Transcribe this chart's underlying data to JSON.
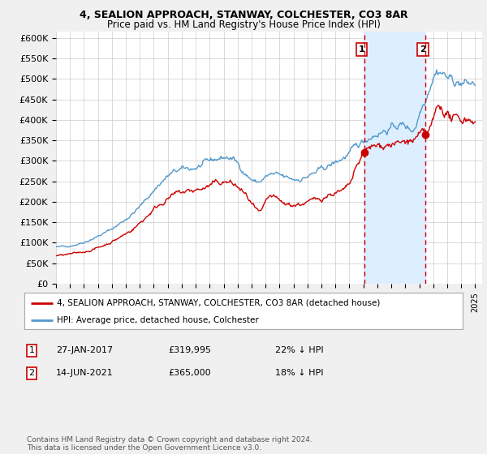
{
  "title": "4, SEALION APPROACH, STANWAY, COLCHESTER, CO3 8AR",
  "subtitle": "Price paid vs. HM Land Registry's House Price Index (HPI)",
  "ylabel_ticks": [
    "£0",
    "£50K",
    "£100K",
    "£150K",
    "£200K",
    "£250K",
    "£300K",
    "£350K",
    "£400K",
    "£450K",
    "£500K",
    "£550K",
    "£600K"
  ],
  "ytick_values": [
    0,
    50000,
    100000,
    150000,
    200000,
    250000,
    300000,
    350000,
    400000,
    450000,
    500000,
    550000,
    600000
  ],
  "ylim": [
    0,
    615000
  ],
  "xlim_start": 1995.0,
  "xlim_end": 2025.5,
  "sale1_date": 2017.07,
  "sale1_price": 319995,
  "sale2_date": 2021.46,
  "sale2_price": 365000,
  "line_red_color": "#cc0000",
  "line_blue_color": "#5599cc",
  "shade_color": "#ddeeff",
  "background_color": "#f0f0f0",
  "plot_bg_color": "#ffffff",
  "legend_label_red": "4, SEALION APPROACH, STANWAY, COLCHESTER, CO3 8AR (detached house)",
  "legend_label_blue": "HPI: Average price, detached house, Colchester",
  "annot1": [
    "1",
    "27-JAN-2017",
    "£319,995",
    "22% ↓ HPI"
  ],
  "annot2": [
    "2",
    "14-JUN-2021",
    "£365,000",
    "18% ↓ HPI"
  ],
  "footer": "Contains HM Land Registry data © Crown copyright and database right 2024.\nThis data is licensed under the Open Government Licence v3.0.",
  "title_fontsize": 9,
  "subtitle_fontsize": 8.5
}
